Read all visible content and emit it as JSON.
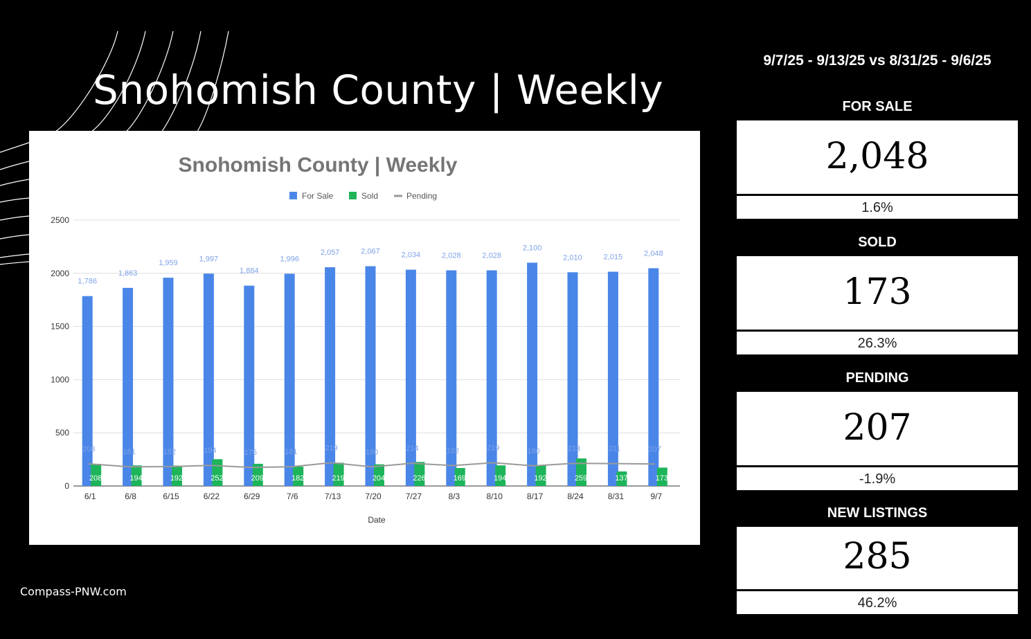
{
  "slide": {
    "title": "Snohomish County | Weekly",
    "footer": "Compass-PNW.com"
  },
  "summary": {
    "date_range": "9/7/25 - 9/13/25 vs 8/31/25 - 9/6/25",
    "stats": [
      {
        "label": "FOR SALE",
        "value": "2,048",
        "change": "1.6%"
      },
      {
        "label": "SOLD",
        "value": "173",
        "change": "26.3%"
      },
      {
        "label": "PENDING",
        "value": "207",
        "change": "-1.9%"
      },
      {
        "label": "NEW LISTINGS",
        "value": "285",
        "change": "46.2%"
      }
    ]
  },
  "colors": {
    "for_sale": "#4a86e8",
    "sold": "#1db45a",
    "pending": "#999999",
    "title_text": "#757575",
    "label_text": "#7ea2e8"
  },
  "chart_data": {
    "type": "bar",
    "title": "Snohomish County | Weekly",
    "xlabel": "Date",
    "ylabel": "",
    "ylim": [
      0,
      2500
    ],
    "yticks": [
      0,
      500,
      1000,
      1500,
      2000,
      2500
    ],
    "grid": true,
    "legend": "top-center",
    "categories": [
      "6/1",
      "6/8",
      "6/15",
      "6/22",
      "6/29",
      "7/6",
      "7/13",
      "7/20",
      "7/27",
      "8/3",
      "8/10",
      "8/17",
      "8/24",
      "8/31",
      "9/7"
    ],
    "series": [
      {
        "name": "For Sale",
        "type": "bar",
        "values": [
          1786,
          1863,
          1959,
          1997,
          1884,
          1996,
          2057,
          2067,
          2034,
          2028,
          2028,
          2100,
          2010,
          2015,
          2048
        ],
        "labels": [
          "1,786",
          "1,863",
          "1,959",
          "1,997",
          "1,884",
          "1,996",
          "2,057",
          "2,067",
          "2,034",
          "2,028",
          "2,028",
          "2,100",
          "2,010",
          "2,015",
          "2,048"
        ]
      },
      {
        "name": "Sold",
        "type": "bar",
        "values": [
          208,
          194,
          192,
          252,
          209,
          182,
          219,
          204,
          226,
          169,
          194,
          192,
          259,
          137,
          173
        ],
        "labels": [
          "208",
          "194",
          "192",
          "252",
          "209",
          "182",
          "219",
          "204",
          "226",
          "169",
          "194",
          "192",
          "259",
          "137",
          "173"
        ]
      },
      {
        "name": "Pending",
        "type": "line",
        "values": [
          208,
          181,
          182,
          194,
          175,
          181,
          219,
          180,
          214,
          192,
          219,
          190,
          213,
          211,
          207
        ],
        "labels": [
          "208",
          "181",
          "182",
          "194",
          "175",
          "181",
          "219",
          "180",
          "214",
          "192",
          "219",
          "190",
          "213",
          "211",
          "207"
        ]
      }
    ]
  }
}
